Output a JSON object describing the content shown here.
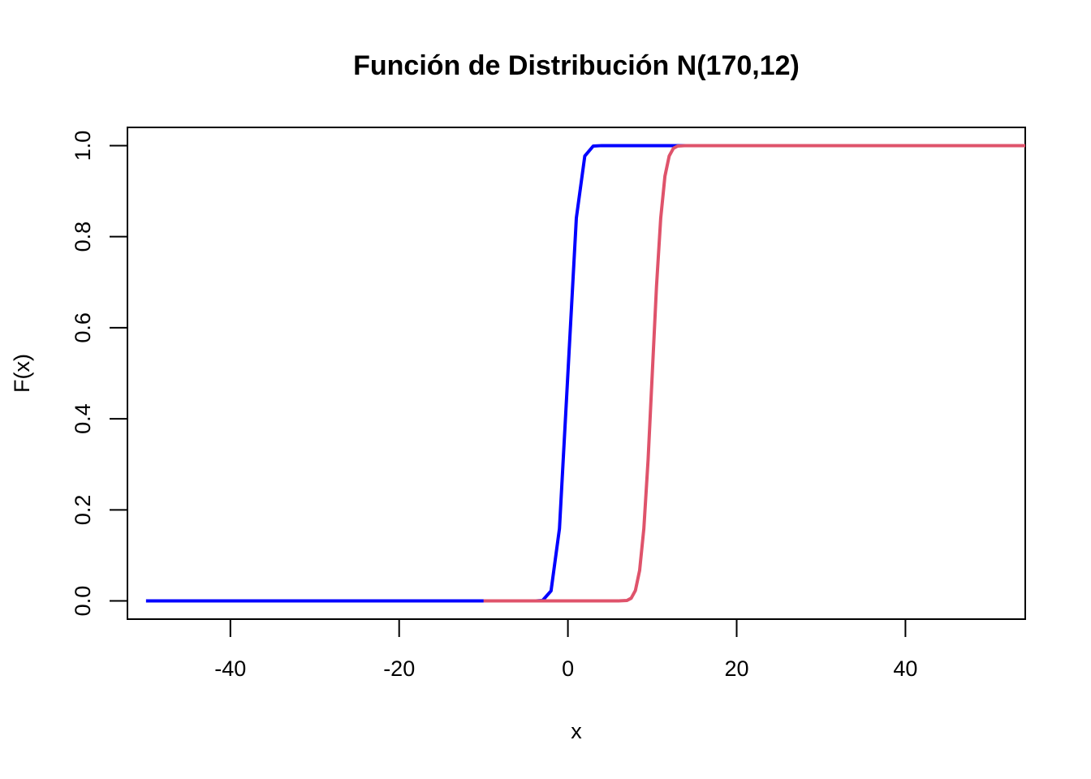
{
  "chart_data": {
    "type": "line",
    "title": "Función de Distribución N(170,12)",
    "xlabel": "x",
    "ylabel": "F(x)",
    "xlim": [
      -52.2,
      54.2
    ],
    "ylim": [
      -0.04,
      1.04
    ],
    "x_ticks": [
      -40,
      -20,
      0,
      20,
      40
    ],
    "x_tick_labels": [
      "-40",
      "-20",
      "0",
      "20",
      "40"
    ],
    "y_ticks": [
      0.0,
      0.2,
      0.4,
      0.6,
      0.8,
      1.0
    ],
    "y_tick_labels": [
      "0.0",
      "0.2",
      "0.4",
      "0.6",
      "0.8",
      "1.0"
    ],
    "grid": false,
    "legend": false,
    "series": [
      {
        "color": "#0000FF",
        "x": [
          -50,
          -10,
          -4,
          -3,
          -2,
          -1,
          0,
          1,
          2,
          3,
          4,
          14
        ],
        "y": [
          0,
          0,
          0,
          0.001,
          0.022,
          0.159,
          0.5,
          0.841,
          0.977,
          0.999,
          1,
          1
        ]
      },
      {
        "color": "#DF536B",
        "x": [
          -10,
          6,
          7,
          7.5,
          8,
          8.5,
          9,
          9.5,
          10,
          10.5,
          11,
          11.5,
          12,
          12.5,
          13,
          14,
          54.2
        ],
        "y": [
          0,
          0,
          0.001,
          0.006,
          0.023,
          0.067,
          0.159,
          0.309,
          0.5,
          0.691,
          0.841,
          0.933,
          0.977,
          0.994,
          0.999,
          1,
          1
        ]
      }
    ]
  }
}
